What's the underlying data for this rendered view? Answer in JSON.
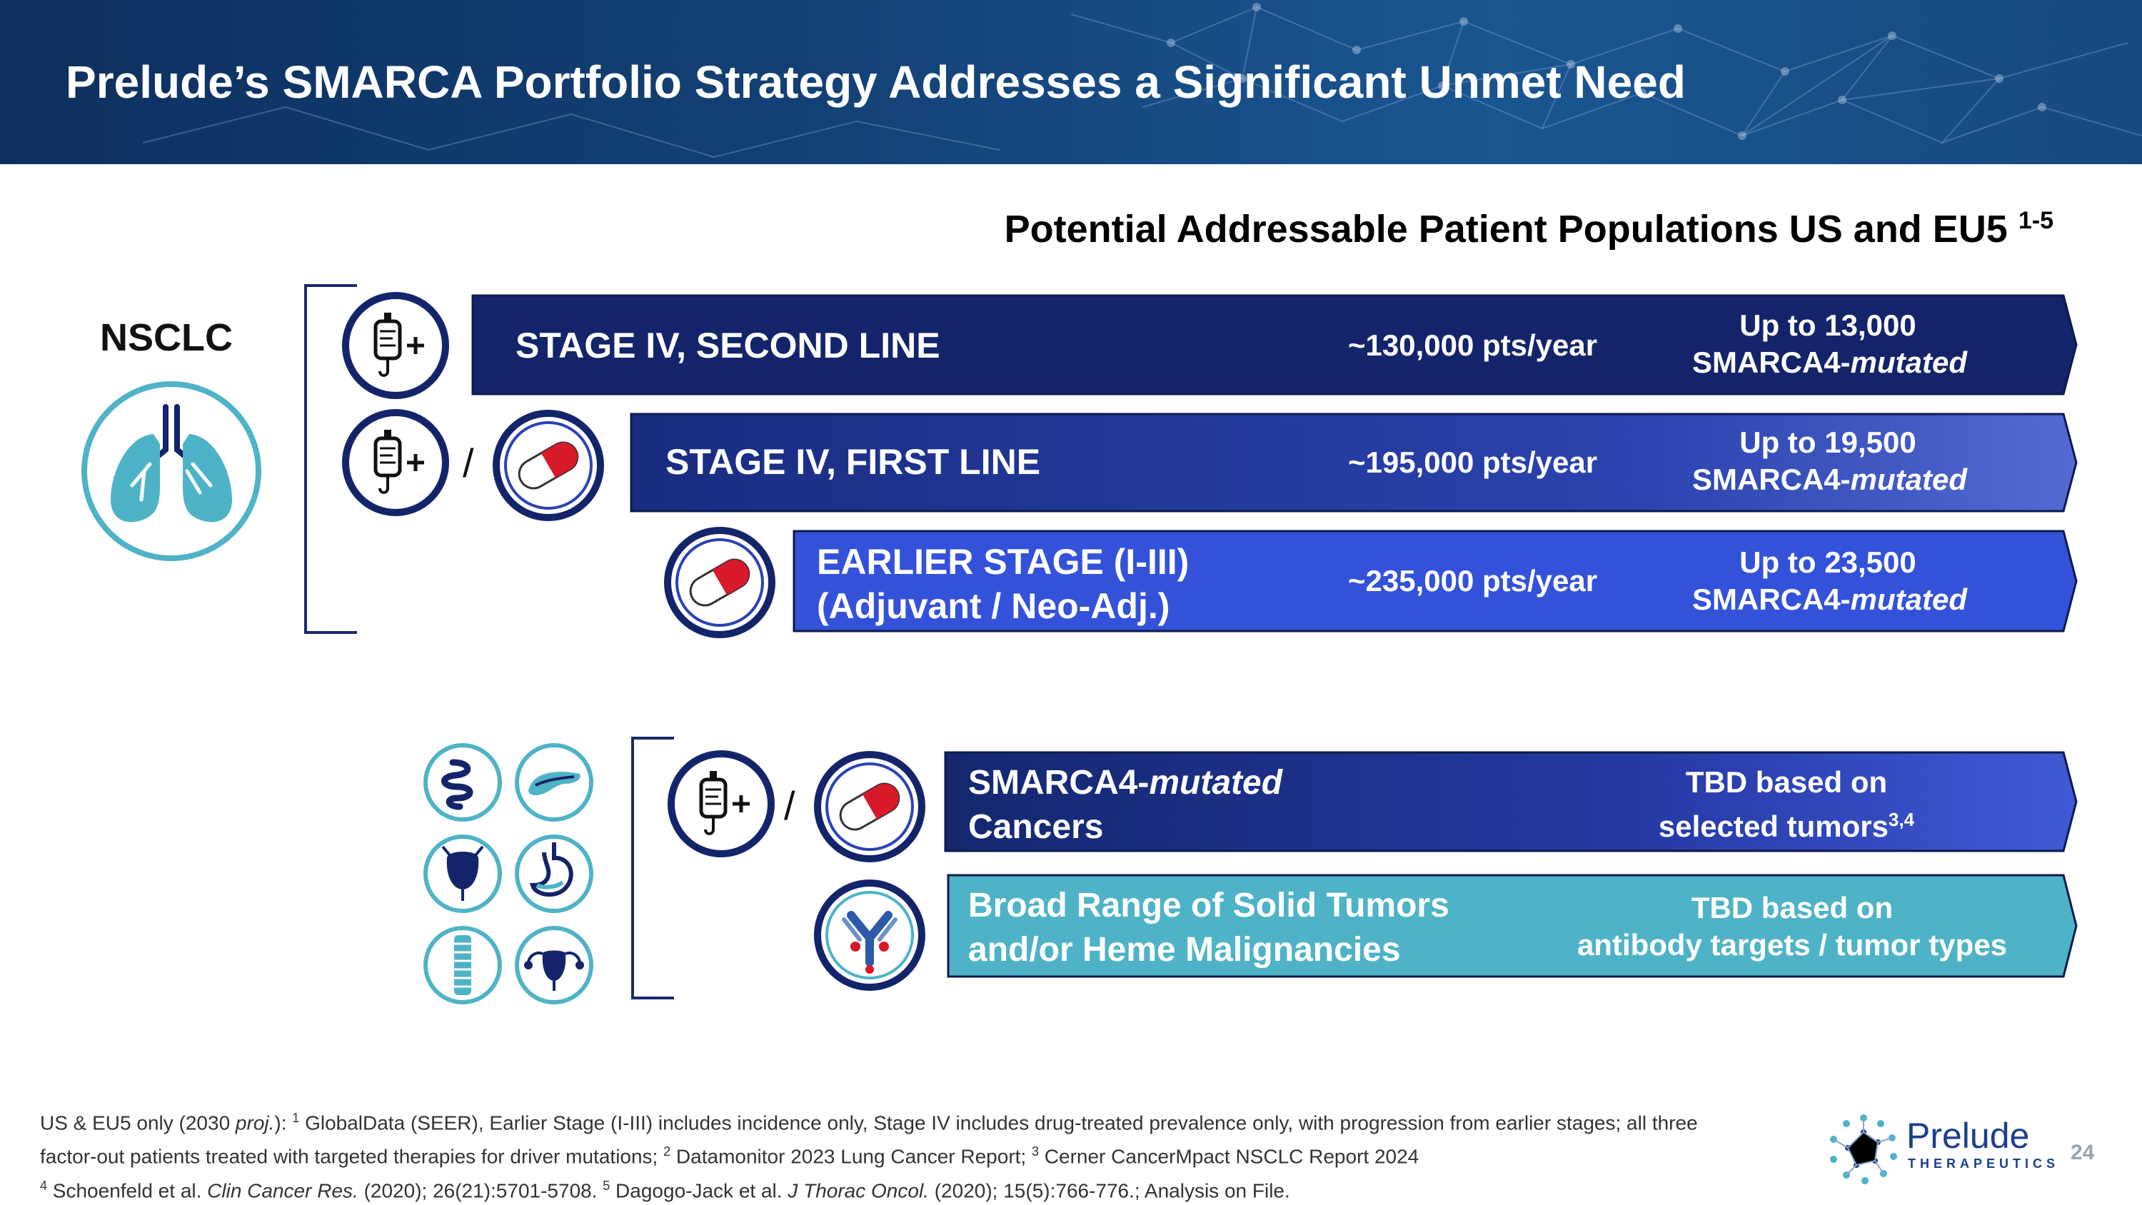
{
  "header": {
    "title": "Prelude’s SMARCA Portfolio Strategy Addresses a Significant Unmet Need"
  },
  "subtitle": {
    "text": "Potential Addressable Patient Populations US and EU5",
    "sup": "1-5"
  },
  "nsclc": {
    "label": "NSCLC",
    "rows": [
      {
        "label_line1": "STAGE IV, SECOND LINE",
        "label_line2": "",
        "pts": "~130,000 pts/year",
        "right_line1": "Up to 13,000",
        "right_line2_prefix": "SMARCA4-",
        "right_line2_italic": "mutated"
      },
      {
        "label_line1": "STAGE IV, FIRST LINE",
        "label_line2": "",
        "pts": "~195,000 pts/year",
        "right_line1": "Up to 19,500",
        "right_line2_prefix": "SMARCA4-",
        "right_line2_italic": "mutated"
      },
      {
        "label_line1": "EARLIER STAGE (I-III)",
        "label_line2": "(Adjuvant / Neo-Adj.)",
        "pts": "~235,000 pts/year",
        "right_line1": "Up to 23,500",
        "right_line2_prefix": "SMARCA4-",
        "right_line2_italic": "mutated"
      }
    ]
  },
  "other": {
    "rows": [
      {
        "label_prefix": "SMARCA4-",
        "label_italic": "mutated",
        "label_line2": "Cancers",
        "right_line1": "TBD based on",
        "right_line2": "selected tumors",
        "right_sup": "3,4"
      },
      {
        "label_line1": "Broad Range of Solid Tumors",
        "label_line2": "and/or Heme Malignancies",
        "right_line1": "TBD based on",
        "right_line2": "antibody targets / tumor types"
      }
    ]
  },
  "separator": "/",
  "plus": "+",
  "footnote": {
    "p1": "US & EU5 only (2030 ",
    "p1_italic": "proj.",
    "p2": "): ",
    "s1": "1",
    "p3": " GlobalData (SEER), Earlier Stage (I-III) includes incidence only, Stage IV includes drug-treated prevalence only, with progression from earlier stages; all three factor-out patients treated with targeted therapies for driver mutations; ",
    "s2": "2",
    "p4": " Datamonitor 2023 Lung Cancer Report; ",
    "s3": "3",
    "p5": " Cerner CancerMpact NSCLC Report 2024",
    "s4": "4",
    "p6": "  Schoenfeld et al. ",
    "p6_italic": "Clin Cancer Res.",
    "p7": " (2020); 26(21):5701-5708. ",
    "s5": "5",
    "p8": " Dagogo-Jack et al. ",
    "p8_italic": "J Thorac Oncol.",
    "p9": " (2020); 15(5):766-776.; Analysis on File."
  },
  "logo": {
    "word": "Prelude",
    "sub": "THERAPEUTICS"
  },
  "page_number": "24",
  "colors": {
    "navy": "#13246a",
    "mid_blue": "#2c43b5",
    "bright_blue": "#3352d9",
    "teal": "#4fb3c7",
    "header": "#123f73",
    "pill_red": "#d7192a"
  },
  "icons": [
    "iv-bag-icon",
    "pill-icon",
    "lungs-icon",
    "antibody-icon",
    "intestine-icon",
    "pancreas-icon",
    "bladder-icon",
    "stomach-icon",
    "esophagus-icon",
    "uterus-icon"
  ]
}
